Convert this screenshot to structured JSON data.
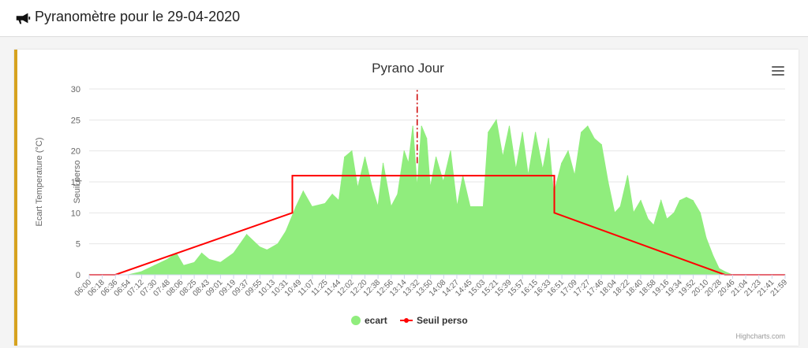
{
  "header": {
    "icon": "megaphone-icon",
    "title": "Pyranomètre pour le 29-04-2020"
  },
  "chart_menu_icon": "hamburger-menu-icon",
  "credits": "Highcharts.com",
  "colors": {
    "accent": "#d6a21e",
    "area": "#90ed7d",
    "threshold": "#ff0000"
  },
  "chart_data": {
    "type": "area",
    "title": "Pyrano Jour",
    "ylabel": "Ecart Temperature (°C)",
    "ylabel2": "Seuil perso",
    "ylim": [
      0,
      30
    ],
    "yticks": [
      0,
      5,
      10,
      15,
      20,
      25,
      30
    ],
    "grid": true,
    "legend_position": "bottom",
    "xticks": [
      "06:00",
      "06:18",
      "06:36",
      "06:54",
      "07:12",
      "07:30",
      "07:48",
      "08:06",
      "08:25",
      "08:43",
      "09:01",
      "09:19",
      "09:37",
      "09:55",
      "10:13",
      "10:31",
      "10:49",
      "11:07",
      "11:25",
      "11:44",
      "12:02",
      "12:20",
      "12:38",
      "12:56",
      "13:14",
      "13:32",
      "13:50",
      "14:08",
      "14:27",
      "14:45",
      "15:03",
      "15:21",
      "15:39",
      "15:57",
      "16:15",
      "16:33",
      "16:51",
      "17:09",
      "17:27",
      "17:46",
      "18:04",
      "18:22",
      "18:40",
      "18:58",
      "19:16",
      "19:34",
      "19:52",
      "20:10",
      "20:28",
      "20:46",
      "21:04",
      "21:23",
      "21:41",
      "21:59"
    ],
    "series": [
      {
        "name": "ecart",
        "type": "area",
        "color": "#90ed7d",
        "x": [
          "06:00",
          "06:36",
          "06:54",
          "07:12",
          "07:30",
          "07:48",
          "08:00",
          "08:10",
          "08:25",
          "08:35",
          "08:45",
          "09:01",
          "09:19",
          "09:37",
          "09:55",
          "10:05",
          "10:20",
          "10:31",
          "10:45",
          "10:55",
          "11:07",
          "11:25",
          "11:35",
          "11:44",
          "11:52",
          "12:02",
          "12:10",
          "12:20",
          "12:30",
          "12:38",
          "12:45",
          "12:56",
          "13:05",
          "13:14",
          "13:20",
          "13:26",
          "13:32",
          "13:38",
          "13:45",
          "13:50",
          "13:58",
          "14:08",
          "14:18",
          "14:27",
          "14:35",
          "14:45",
          "14:55",
          "15:03",
          "15:10",
          "15:21",
          "15:30",
          "15:39",
          "15:48",
          "15:57",
          "16:05",
          "16:15",
          "16:25",
          "16:33",
          "16:40",
          "16:51",
          "17:00",
          "17:09",
          "17:18",
          "17:27",
          "17:36",
          "17:46",
          "17:55",
          "18:04",
          "18:12",
          "18:22",
          "18:30",
          "18:40",
          "18:50",
          "18:58",
          "19:08",
          "19:16",
          "19:26",
          "19:34",
          "19:43",
          "19:52",
          "20:02",
          "20:10",
          "20:20",
          "20:28",
          "20:36",
          "20:46",
          "21:00",
          "21:59"
        ],
        "values": [
          0,
          0,
          0,
          0.5,
          1.5,
          2.5,
          3.5,
          1.5,
          2,
          3.5,
          2.5,
          2,
          3.5,
          6.5,
          4.5,
          4,
          5,
          7,
          11,
          13.5,
          11,
          11.5,
          13,
          12,
          19,
          20,
          14,
          19,
          14,
          11,
          18,
          11,
          13,
          20,
          18,
          24,
          14,
          24,
          22,
          14,
          19,
          15,
          20,
          11,
          16,
          11,
          11,
          11,
          23,
          25,
          19,
          24,
          17,
          23,
          16,
          23,
          17,
          22,
          13,
          18,
          20,
          16,
          23,
          24,
          22,
          21,
          15,
          10,
          11,
          16,
          10,
          12,
          9,
          8,
          12,
          9,
          10,
          12,
          12.5,
          12,
          10,
          6,
          3,
          1,
          0.5,
          0,
          0,
          0
        ]
      },
      {
        "name": "Seuil perso",
        "type": "line",
        "color": "#ff0000",
        "x": [
          "06:00",
          "06:36",
          "10:40",
          "10:40",
          "16:41",
          "16:41",
          "20:36",
          "21:59"
        ],
        "values": [
          0,
          0,
          10,
          16,
          16,
          10,
          0,
          0
        ]
      }
    ],
    "annotation_line": {
      "type": "dash-dot",
      "color": "#cc0000",
      "x": "13:32",
      "y_from": 18,
      "y_to": 30
    }
  }
}
